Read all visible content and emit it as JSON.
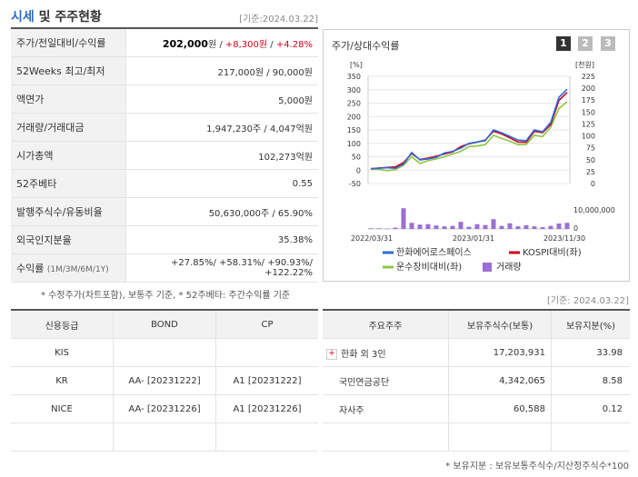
{
  "header": {
    "title_highlight": "시세",
    "title_rest": " 및 주주현황",
    "as_of": "[기준:2024.03.22]"
  },
  "quote_rows": [
    {
      "label": "주가/전일대비/수익률"
    },
    {
      "label": "52Weeks 최고/최저",
      "value": "217,000원 / 90,000원"
    },
    {
      "label": "액면가",
      "value": "5,000원"
    },
    {
      "label": "거래량/거래대금",
      "value": "1,947,230주 / 4,047억원"
    },
    {
      "label": "시가총액",
      "value": "102,273억원"
    },
    {
      "label": "52주베타",
      "value": "0.55"
    },
    {
      "label": "발행주식수/유동비율",
      "value": "50,630,000주 / 65.90%"
    },
    {
      "label": "외국인지분율",
      "value": "35.38%"
    },
    {
      "label": "수익률",
      "label_small": "(1M/3M/6M/1Y)",
      "value": "+27.85%/ +58.31%/ +90.93%/ +122.22%"
    }
  ],
  "price": {
    "price": "202,000",
    "unit": "원",
    "sep": " / ",
    "change": "+8,300원",
    "sep2": " / ",
    "rate": "+4.28%"
  },
  "footnote1": "* 수정주가(차트포함), 보통주 기준, * 52주베타: 주간수익률 기준",
  "chart_panel": {
    "title": "주가/상대수익률",
    "pages": [
      "1",
      "2",
      "3"
    ],
    "left_unit": "[%]",
    "right_unit": "[천원]"
  },
  "chart_data": {
    "type": "line",
    "x_ticks": [
      "2022/03/31",
      "2023/01/31",
      "2023/11/30"
    ],
    "y_left_ticks": [
      "350",
      "300",
      "250",
      "200",
      "150",
      "100",
      "50",
      "0",
      "-50"
    ],
    "y_right_ticks": [
      "225",
      "200",
      "175",
      "150",
      "125",
      "100",
      "75",
      "50",
      "25",
      "0"
    ],
    "y_left_range": [
      -50,
      350
    ],
    "volume_label": "10,000,000",
    "volume_zero": "0",
    "series": [
      {
        "name": "한화에어로스페이스",
        "color": "#2f6bd6",
        "values": [
          6,
          7,
          9,
          7,
          22,
          66,
          38,
          42,
          48,
          64,
          70,
          82,
          100,
          105,
          110,
          150,
          139,
          126,
          112,
          110,
          150,
          143,
          178,
          272,
          302
        ]
      },
      {
        "name": "KOSPI대비(좌)",
        "color": "#d0021b",
        "values": [
          5,
          8,
          10,
          12,
          28,
          62,
          40,
          45,
          52,
          60,
          68,
          88,
          98,
          105,
          112,
          145,
          135,
          120,
          105,
          104,
          145,
          140,
          170,
          260,
          290
        ]
      },
      {
        "name": "운수장비대비(좌)",
        "color": "#8cc63f",
        "values": [
          4,
          3,
          -2,
          2,
          18,
          50,
          25,
          35,
          42,
          50,
          60,
          70,
          88,
          90,
          95,
          130,
          118,
          108,
          95,
          96,
          130,
          125,
          160,
          230,
          255
        ]
      },
      {
        "name": "거래량",
        "color": "#9b6fd3",
        "values": [
          0.03,
          0.03,
          0.02,
          0.06,
          0.95,
          0.28,
          0.2,
          0.22,
          0.16,
          0.12,
          0.14,
          0.33,
          0.1,
          0.22,
          0.18,
          0.45,
          0.14,
          0.26,
          0.12,
          0.17,
          0.12,
          0.08,
          0.14,
          0.25,
          0.28
        ]
      }
    ],
    "legend": [
      "한화에어로스페이스",
      "KOSPI대비(좌)",
      "운수장비대비(좌)",
      "거래량"
    ]
  },
  "as_of2": "[기준: 2024.03.22]",
  "credit": {
    "headers": [
      "신용등급",
      "BOND",
      "CP"
    ],
    "rows": [
      [
        "KIS",
        "",
        ""
      ],
      [
        "KR",
        "AA- [20231222]",
        "A1 [20231222]"
      ],
      [
        "NICE",
        "AA- [20231226]",
        "A1 [20231226]"
      ],
      [
        "",
        "",
        ""
      ]
    ]
  },
  "holders": {
    "headers": [
      "주요주주",
      "보유주식수(보통)",
      "보유지분(%)"
    ],
    "rows": [
      [
        "한화 외 3인",
        "17,203,931",
        "33.98"
      ],
      [
        "국민연금공단",
        "4,342,065",
        "8.58"
      ],
      [
        "자사주",
        "60,588",
        "0.12"
      ],
      [
        "",
        "",
        ""
      ]
    ],
    "expand_mark": "+"
  },
  "footnote2": "* 보유지분 : 보유보통주식수/지산정주식수*100"
}
